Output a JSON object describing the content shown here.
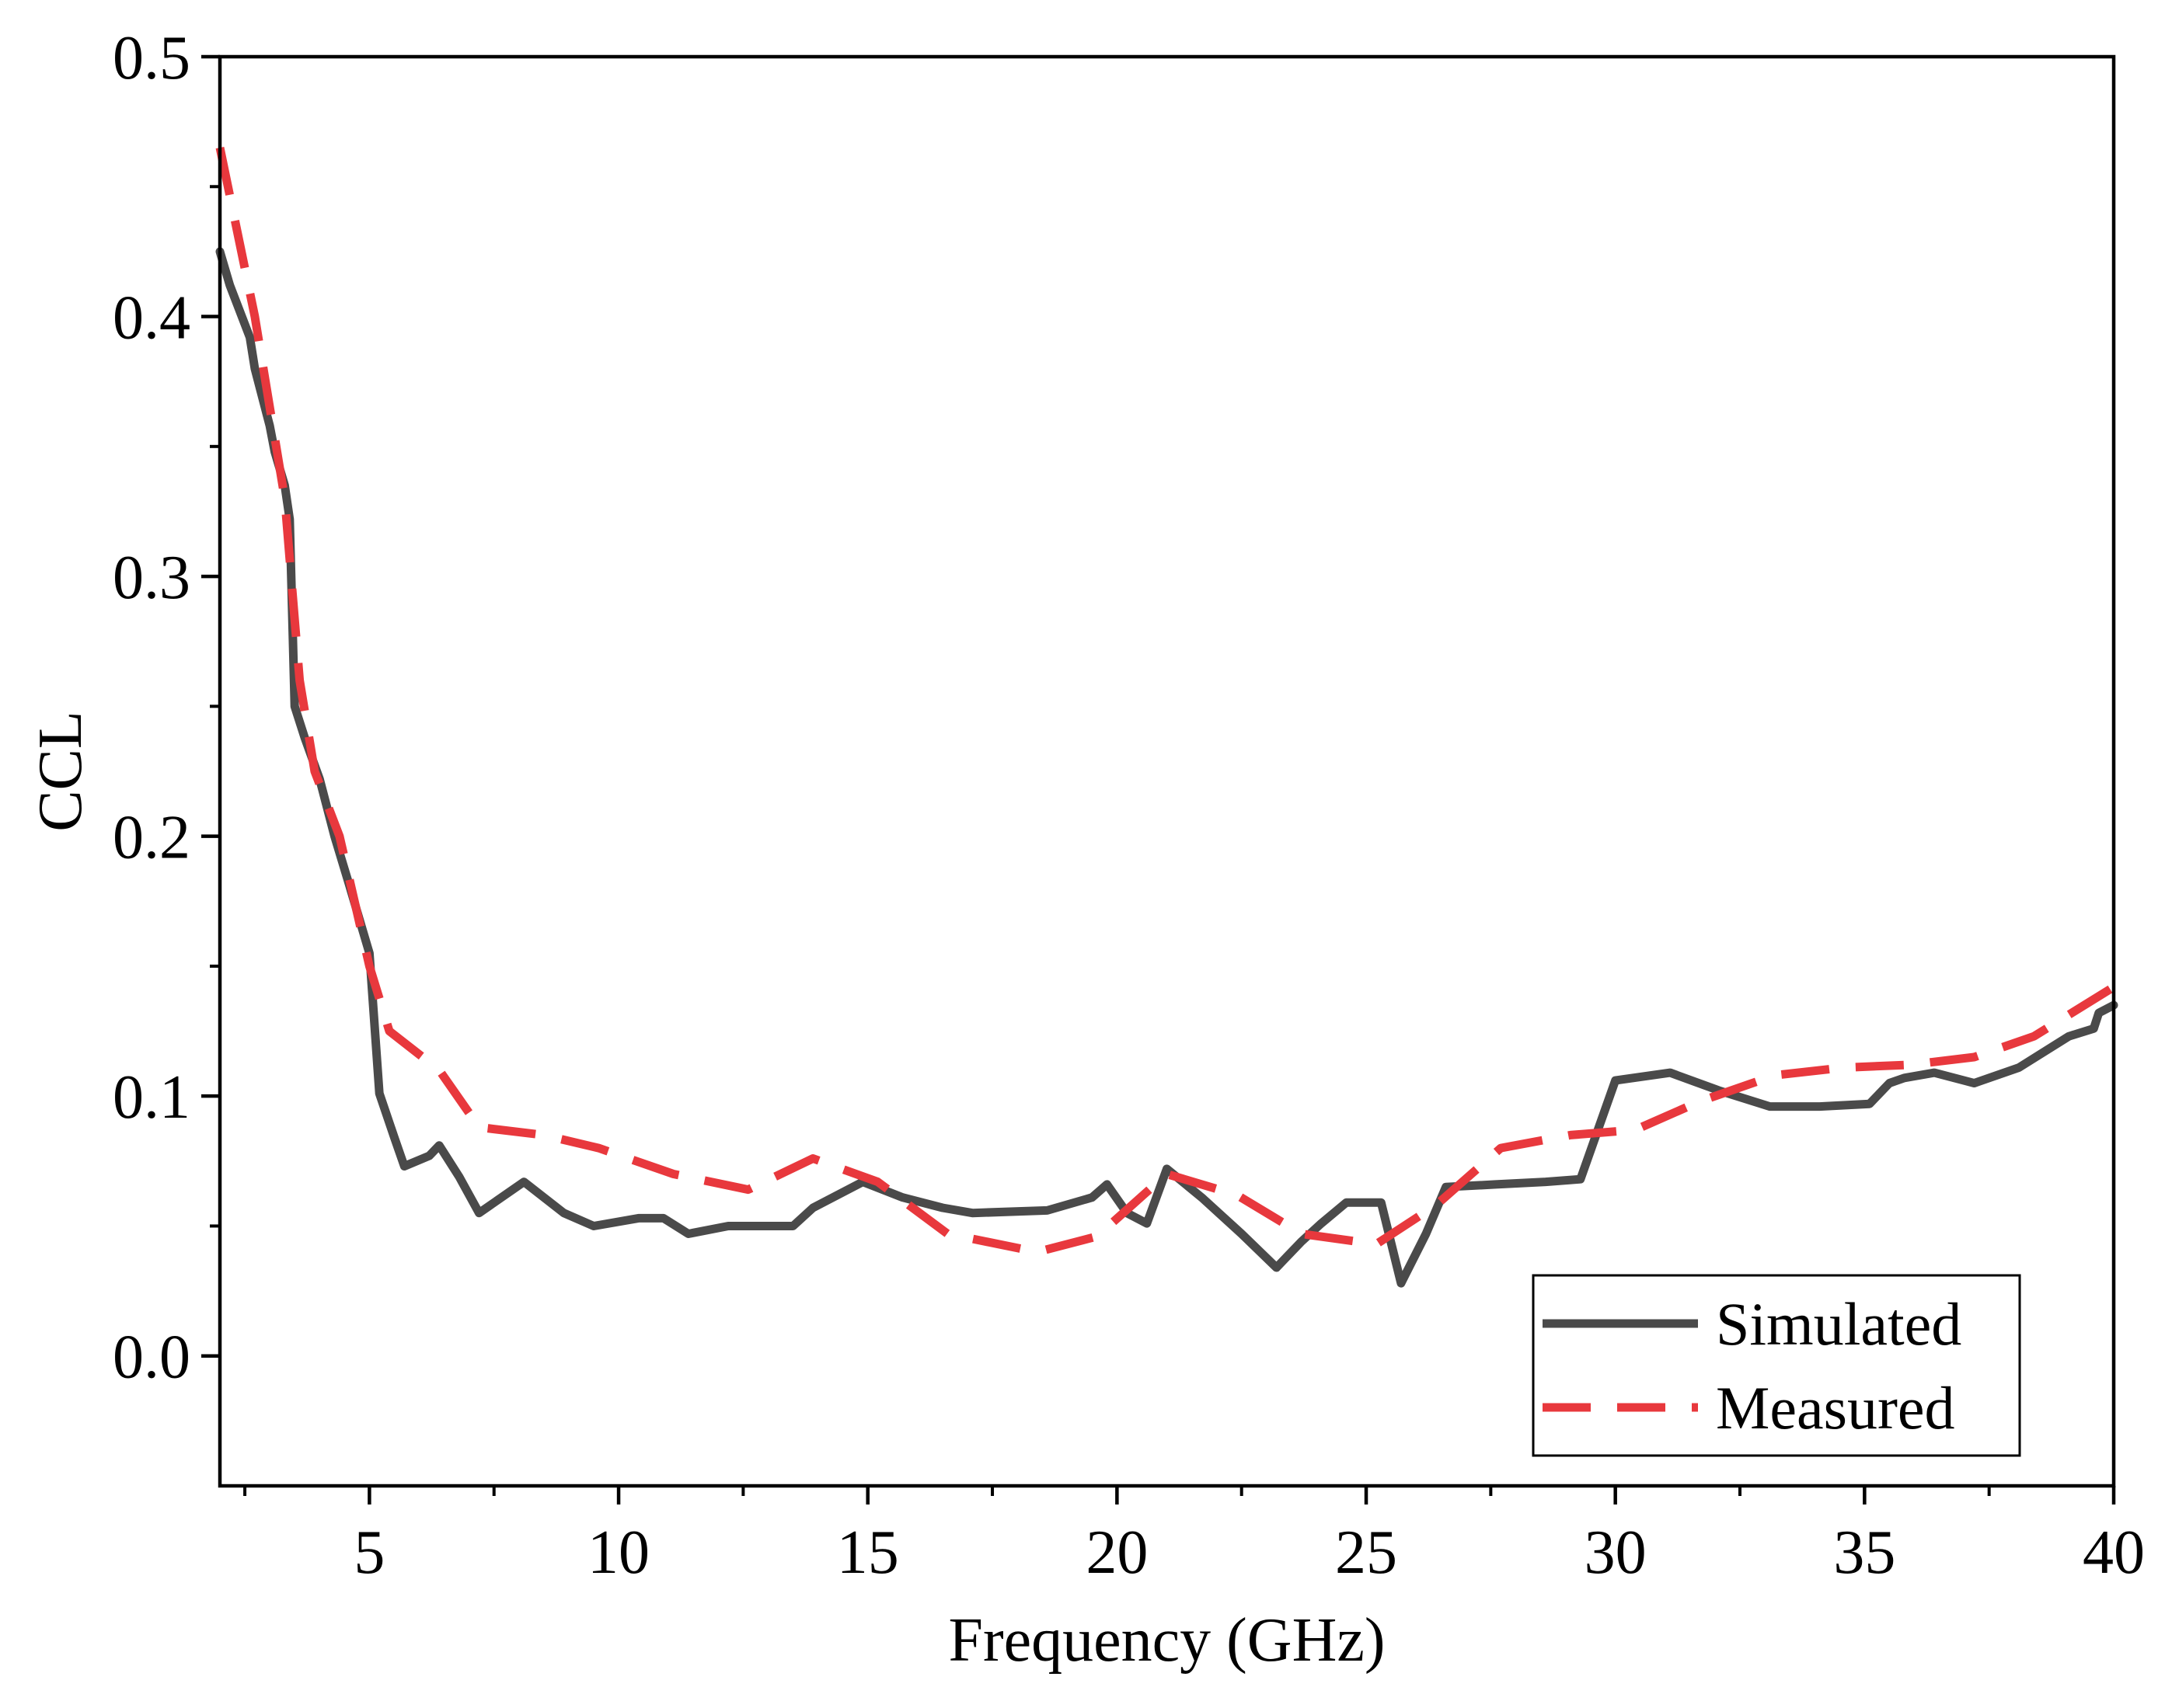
{
  "chart_data": {
    "type": "line",
    "title": "",
    "xlabel": "Frequency (GHz)",
    "ylabel": "CCL",
    "xlim": [
      2,
      40
    ],
    "ylim": [
      -0.05,
      0.5
    ],
    "x_ticks": [
      "5",
      "10",
      "15",
      "20",
      "25",
      "30",
      "35",
      "40"
    ],
    "x_tick_values": [
      5,
      10,
      15,
      20,
      25,
      30,
      35,
      40
    ],
    "y_ticks": [
      "0.0",
      "0.1",
      "0.2",
      "0.3",
      "0.4",
      "0.5"
    ],
    "y_tick_values": [
      0.0,
      0.1,
      0.2,
      0.3,
      0.4,
      0.5
    ],
    "grid": false,
    "legend_position": "bottom-right",
    "series": [
      {
        "name": "Simulated",
        "style": "solid",
        "color": "#4a4a4a",
        "x": [
          2.0,
          2.2,
          2.6,
          2.7,
          3.0,
          3.1,
          3.3,
          3.4,
          3.5,
          3.7,
          4.0,
          4.3,
          4.6,
          5.0,
          5.2,
          5.5,
          5.7,
          6.2,
          6.4,
          6.8,
          7.2,
          8.1,
          8.9,
          9.5,
          10.4,
          10.9,
          11.4,
          12.2,
          12.7,
          13.5,
          13.9,
          14.9,
          15.7,
          16.5,
          17.1,
          18.6,
          19.5,
          19.8,
          20.2,
          20.6,
          21.0,
          21.7,
          22.5,
          23.2,
          23.7,
          24.1,
          24.6,
          25.3,
          25.7,
          26.2,
          26.6,
          27.6,
          28.6,
          29.3,
          30.0,
          31.1,
          32.1,
          33.1,
          34.1,
          35.1,
          35.5,
          35.8,
          36.4,
          37.2,
          38.1,
          39.1,
          39.6,
          39.7,
          40.0
        ],
        "y": [
          0.425,
          0.412,
          0.392,
          0.38,
          0.358,
          0.348,
          0.335,
          0.322,
          0.25,
          0.238,
          0.222,
          0.2,
          0.181,
          0.155,
          0.101,
          0.084,
          0.073,
          0.077,
          0.081,
          0.069,
          0.055,
          0.067,
          0.055,
          0.05,
          0.053,
          0.053,
          0.047,
          0.05,
          0.05,
          0.05,
          0.057,
          0.067,
          0.061,
          0.057,
          0.055,
          0.056,
          0.061,
          0.066,
          0.055,
          0.051,
          0.072,
          0.061,
          0.047,
          0.034,
          0.044,
          0.051,
          0.059,
          0.059,
          0.028,
          0.047,
          0.065,
          0.066,
          0.067,
          0.068,
          0.106,
          0.109,
          0.102,
          0.096,
          0.096,
          0.097,
          0.105,
          0.107,
          0.109,
          0.105,
          0.111,
          0.123,
          0.126,
          0.132,
          0.135
        ]
      },
      {
        "name": "Measured",
        "style": "dashed",
        "color": "#e8383d",
        "x": [
          2.0,
          2.7,
          3.3,
          3.6,
          3.9,
          4.4,
          5.0,
          5.4,
          6.4,
          7.2,
          8.5,
          9.6,
          11.1,
          12.6,
          13.9,
          15.2,
          16.6,
          18.4,
          19.6,
          21.0,
          22.4,
          23.7,
          25.2,
          26.4,
          27.7,
          29.1,
          30.4,
          31.7,
          33.2,
          34.6,
          35.9,
          37.2,
          38.4,
          40.0
        ],
        "y": [
          0.465,
          0.4,
          0.33,
          0.26,
          0.225,
          0.2,
          0.15,
          0.125,
          0.11,
          0.088,
          0.085,
          0.08,
          0.07,
          0.064,
          0.076,
          0.067,
          0.047,
          0.04,
          0.046,
          0.07,
          0.062,
          0.047,
          0.043,
          0.058,
          0.08,
          0.085,
          0.087,
          0.098,
          0.108,
          0.111,
          0.112,
          0.115,
          0.123,
          0.142
        ]
      }
    ]
  }
}
